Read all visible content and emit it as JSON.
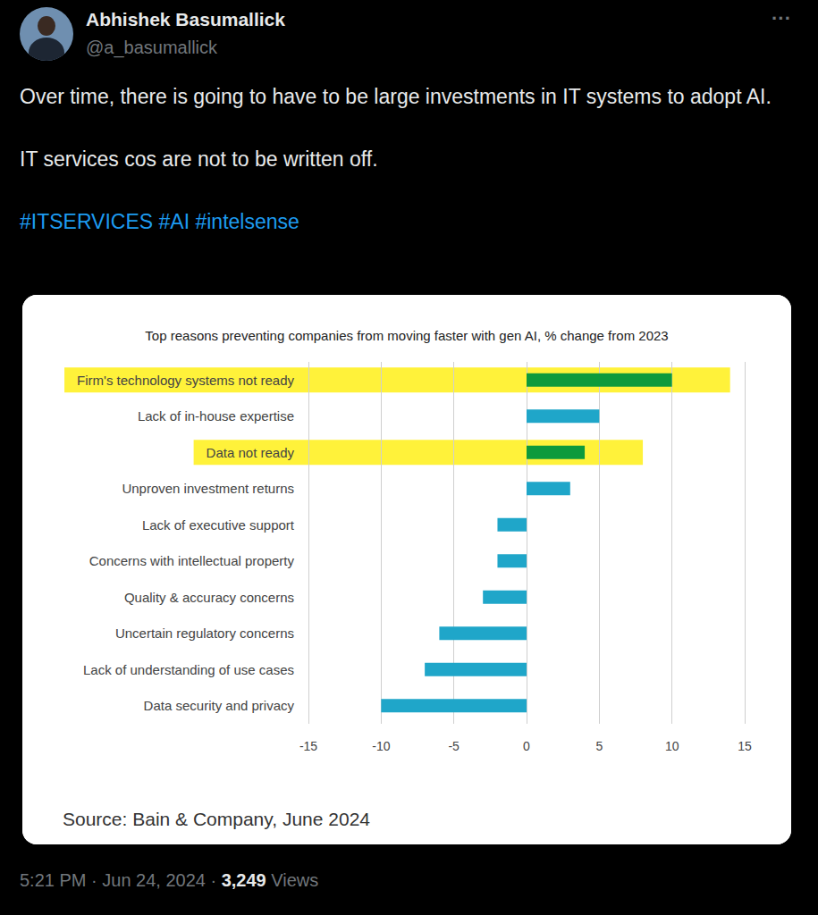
{
  "tweet": {
    "name": "Abhishek Basumallick",
    "handle": "@a_basumallick",
    "more": "···",
    "paragraphs": [
      "Over time, there is going to have to be large investments in IT systems to adopt AI.",
      "IT services cos are not to be written off."
    ],
    "hashtags": [
      "#ITSERVICES",
      "#AI",
      "#intelsense"
    ],
    "footer": {
      "time_date": "5:21 PM · Jun 24, 2024 ·",
      "views": "3,249",
      "views_label": "Views"
    }
  },
  "chart_data": {
    "type": "bar",
    "orientation": "horizontal",
    "title": "Top reasons preventing companies from moving faster with gen AI, % change from 2023",
    "source": "Source: Bain & Company, June 2024",
    "categories": [
      "Firm's technology systems not ready",
      "Lack of in-house expertise",
      "Data not ready",
      "Unproven investment returns",
      "Lack of executive support",
      "Concerns with intellectual property",
      "Quality & accuracy concerns",
      "Uncertain regulatory concerns",
      "Lack of understanding of use cases",
      "Data security and privacy"
    ],
    "values": [
      10,
      5,
      4,
      3,
      -2,
      -2,
      -3,
      -6,
      -7,
      -10
    ],
    "colors": [
      "#0d9a3c",
      "#1fa6c9",
      "#0d9a3c",
      "#1fa6c9",
      "#1fa6c9",
      "#1fa6c9",
      "#1fa6c9",
      "#1fa6c9",
      "#1fa6c9",
      "#1fa6c9"
    ],
    "xlim": [
      -15,
      15
    ],
    "xticks": [
      -15,
      -10,
      -5,
      0,
      5,
      10,
      15
    ],
    "grid": true
  }
}
